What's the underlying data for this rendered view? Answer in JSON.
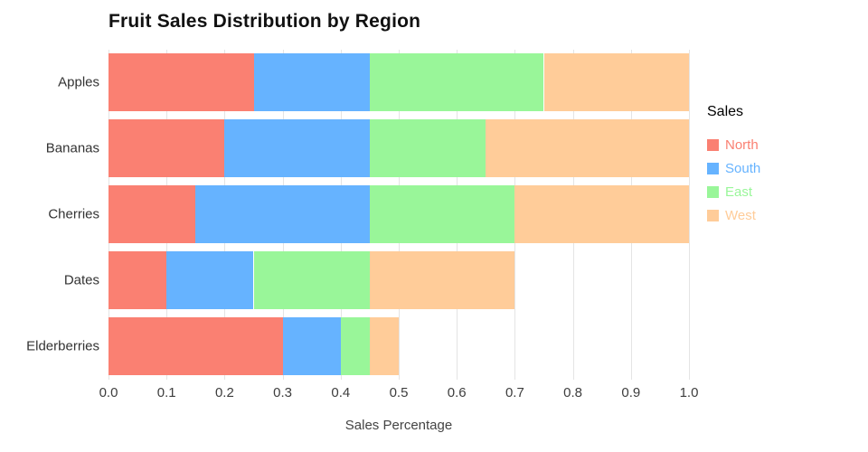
{
  "chart_data": {
    "type": "bar",
    "orientation": "horizontal",
    "stacked": true,
    "title": "Fruit Sales Distribution by Region",
    "xlabel": "Sales Percentage",
    "ylabel": "",
    "categories": [
      "Apples",
      "Bananas",
      "Cherries",
      "Dates",
      "Elderberries"
    ],
    "series": [
      {
        "name": "North",
        "color": "#FA8072",
        "values": [
          0.25,
          0.2,
          0.15,
          0.1,
          0.3
        ]
      },
      {
        "name": "South",
        "color": "#66B3FF",
        "values": [
          0.2,
          0.25,
          0.3,
          0.15,
          0.1
        ]
      },
      {
        "name": "East",
        "color": "#99F699",
        "values": [
          0.3,
          0.2,
          0.25,
          0.2,
          0.05
        ]
      },
      {
        "name": "West",
        "color": "#FFCC99",
        "values": [
          0.25,
          0.35,
          0.3,
          0.25,
          0.05
        ]
      }
    ],
    "totals": [
      1.0,
      1.0,
      1.0,
      0.7,
      0.5
    ],
    "xlim": [
      0,
      1
    ],
    "xticks": [
      0.0,
      0.1,
      0.2,
      0.3,
      0.4,
      0.5,
      0.6,
      0.7,
      0.8,
      0.9,
      1.0
    ],
    "xtick_labels": [
      "0.0",
      "0.1",
      "0.2",
      "0.3",
      "0.4",
      "0.5",
      "0.6",
      "0.7",
      "0.8",
      "0.9",
      "1.0"
    ],
    "grid": true,
    "background": "#ffffff",
    "legend": {
      "title": "Sales",
      "position": "right",
      "entries": [
        "North",
        "South",
        "East",
        "West"
      ]
    }
  }
}
